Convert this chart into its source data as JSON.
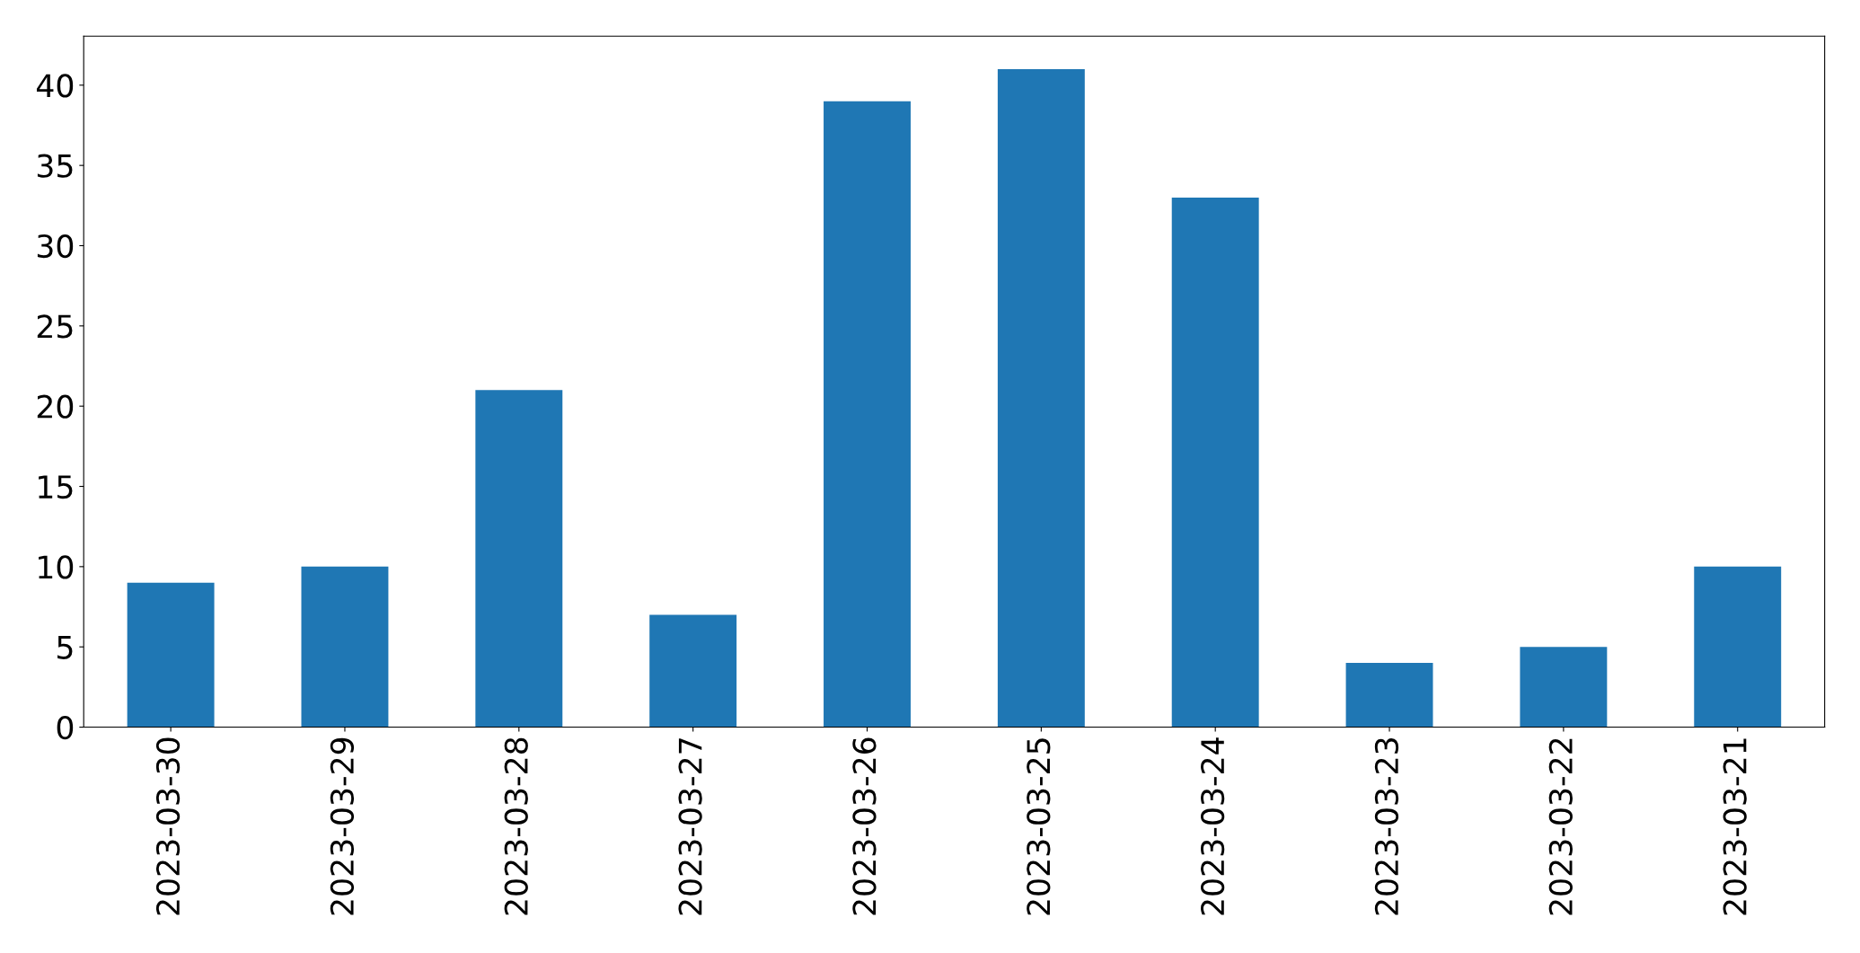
{
  "chart_data": {
    "type": "bar",
    "categories": [
      "2023-03-30",
      "2023-03-29",
      "2023-03-28",
      "2023-03-27",
      "2023-03-26",
      "2023-03-25",
      "2023-03-24",
      "2023-03-23",
      "2023-03-22",
      "2023-03-21"
    ],
    "values": [
      9,
      10,
      21,
      7,
      39,
      41,
      33,
      4,
      5,
      10
    ],
    "color": "#1f77b4",
    "ylim": [
      0,
      43.05
    ],
    "yticks": [
      0,
      5,
      10,
      15,
      20,
      25,
      30,
      35,
      40
    ]
  }
}
